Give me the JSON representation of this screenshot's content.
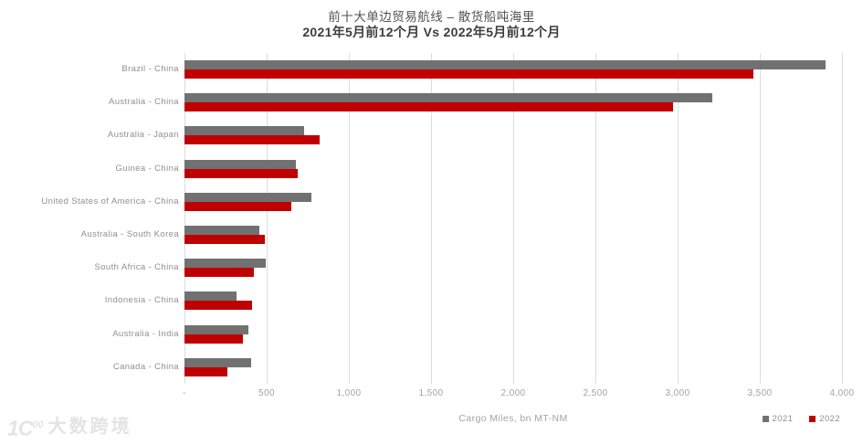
{
  "title": "前十大单边贸易航线 – 散货船吨海里",
  "subtitle": "2021年5月前12个月  Vs 2022年5月前12个月",
  "watermark": {
    "logo_text": "1C",
    "logo_sup": "00",
    "text": "大数跨境"
  },
  "colors": {
    "series_2021": "#717171",
    "series_2022": "#c00000",
    "gridline": "#dcdcdc",
    "category_label": "#8f8f8f",
    "tick_label": "#a3a3a3",
    "watermark": "#e4e4e4"
  },
  "chart_data": {
    "type": "bar",
    "orientation": "horizontal",
    "title": "前十大单边贸易航线 – 散货船吨海里",
    "subtitle": "2021年5月前12个月 Vs 2022年5月前12个月",
    "categories": [
      "Brazil - China",
      "Australia - China",
      "Australia - Japan",
      "Guinea - China",
      "United States of America - China",
      "Australia - South Korea",
      "South Africa - China",
      "Indonesia - China",
      "Australia - India",
      "Canada - China"
    ],
    "series": [
      {
        "name": "2021",
        "color": "#717171",
        "values": [
          3900,
          3210,
          730,
          675,
          770,
          455,
          495,
          315,
          390,
          405
        ]
      },
      {
        "name": "2022",
        "color": "#c00000",
        "values": [
          3460,
          2970,
          820,
          690,
          650,
          490,
          420,
          410,
          355,
          260
        ]
      }
    ],
    "xlabel": "Cargo Miles, bn MT-NM",
    "ylabel": "",
    "xlim": [
      0,
      4000
    ],
    "xticks": {
      "values": [
        0,
        500,
        1000,
        1500,
        2000,
        2500,
        3000,
        3500,
        4000
      ],
      "labels": [
        "-",
        "500",
        "1,000",
        "1,500",
        "2,000",
        "2,500",
        "3,000",
        "3,500",
        "4,000"
      ]
    },
    "grid": true,
    "legend_position": "bottom-right"
  }
}
